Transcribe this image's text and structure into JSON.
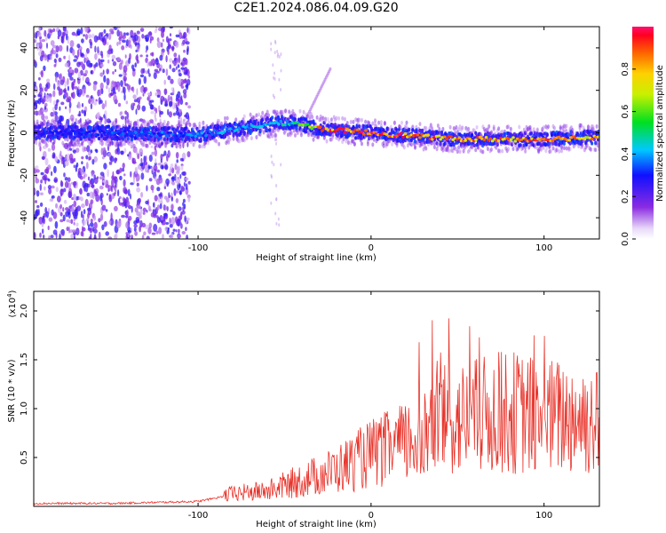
{
  "title": "C2E1.2024.086.04.09.G20",
  "chart_data": [
    {
      "type": "heatmap",
      "xlabel": "Height of straight line (km)",
      "ylabel": "Frequency (Hz)",
      "xlim": [
        -195,
        132
      ],
      "ylim": [
        -50,
        50
      ],
      "xticks": [
        -100,
        0,
        100
      ],
      "yticks": [
        -40,
        -20,
        0,
        20,
        40
      ],
      "colorbar": {
        "label": "Normalized spectral amplitude",
        "range": [
          0.0,
          1.0
        ],
        "ticks": [
          0.0,
          0.2,
          0.4,
          0.6,
          0.8
        ]
      },
      "ridge": {
        "x": [
          -195,
          -150,
          -100,
          -60,
          -45,
          -30,
          0,
          50,
          100,
          132
        ],
        "freq": [
          0,
          0,
          -1,
          4,
          5,
          2,
          0,
          -3,
          -3,
          -2
        ],
        "peak_amplitude": [
          0.3,
          0.35,
          0.4,
          0.45,
          0.5,
          0.9,
          1.0,
          0.9,
          0.9,
          0.85
        ]
      }
    },
    {
      "type": "line",
      "xlabel": "Height of straight line (km)",
      "ylabel": "SNR (10 * v/v)",
      "y_multiplier": "(x10",
      "y_multiplier_exp": "4",
      "xlim": [
        -195,
        132
      ],
      "ylim": [
        0,
        2.2
      ],
      "xticks": [
        -100,
        0,
        100
      ],
      "yticks": [
        0.5,
        1.0,
        1.5,
        2.0
      ],
      "series": [
        {
          "color": "#e8332a",
          "x": [
            -195,
            -150,
            -100,
            -80,
            -60,
            -40,
            -20,
            0,
            20,
            40,
            60,
            80,
            100,
            120,
            132
          ],
          "values": [
            0.03,
            0.03,
            0.05,
            0.12,
            0.15,
            0.25,
            0.35,
            0.5,
            0.6,
            0.8,
            0.85,
            0.9,
            0.85,
            0.85,
            0.8
          ]
        }
      ]
    }
  ]
}
